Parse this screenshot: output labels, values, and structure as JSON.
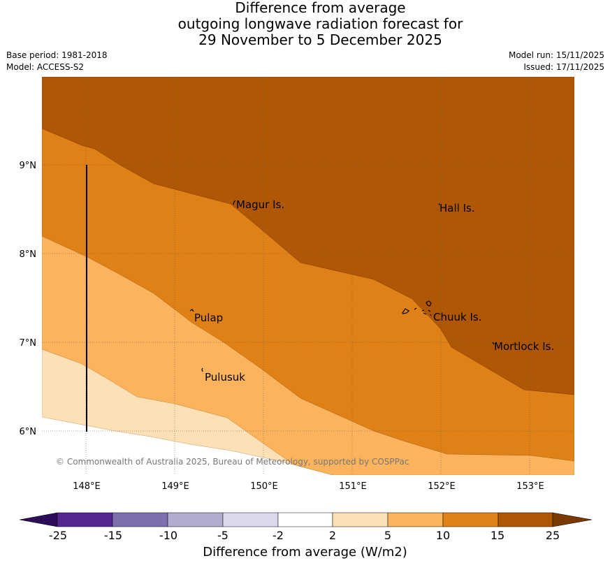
{
  "title": {
    "line1": "Difference from average",
    "line2": "outgoing longwave radiation forecast for",
    "line3": "29 November to 5 December 2025"
  },
  "meta": {
    "base_period": "Base period: 1981-2018",
    "model": "Model: ACCESS-S2",
    "model_run": "Model run: 15/11/2025",
    "issued": "Issued: 17/11/2025"
  },
  "map": {
    "lon_ticks": [
      "148°E",
      "149°E",
      "150°E",
      "151°E",
      "152°E",
      "153°E"
    ],
    "lat_ticks": [
      "9°N",
      "8°N",
      "7°N",
      "6°N"
    ],
    "places": [
      {
        "name": "Magur Is."
      },
      {
        "name": "Hall Is."
      },
      {
        "name": "Pulap"
      },
      {
        "name": "Chuuk Is."
      },
      {
        "name": "Mortlock Is."
      },
      {
        "name": "Pulusuk"
      }
    ],
    "copyright": "© Commonwealth of Australia 2025, Bureau of Meteorology, supported by COSPPac"
  },
  "colorbar": {
    "label": "Difference from average (W/m2)",
    "ticks": [
      "-25",
      "-15",
      "-10",
      "-5",
      "-2",
      "2",
      "5",
      "10",
      "15",
      "25"
    ],
    "colors": [
      "#2d0d5a",
      "#54278f",
      "#7f70ad",
      "#b2abd2",
      "#d9d9ea",
      "#ffffff",
      "#fde0b6",
      "#fbb45d",
      "#e08117",
      "#b05705",
      "#7a3a04"
    ]
  }
}
